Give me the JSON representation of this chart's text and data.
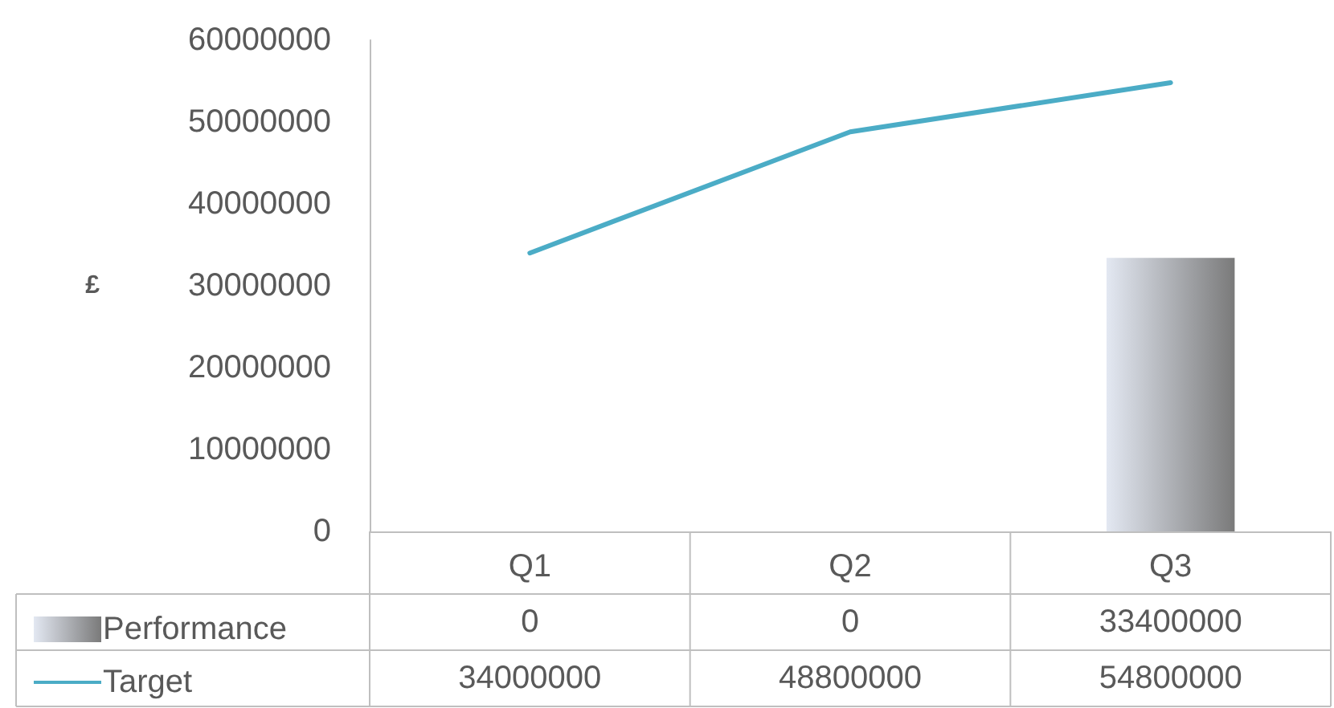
{
  "chart_data": {
    "type": "bar",
    "ylabel": "£",
    "categories": [
      "Q1",
      "Q2",
      "Q3"
    ],
    "series": [
      {
        "name": "Performance",
        "color": "#7a7a7a",
        "values": [
          0,
          0,
          33400000
        ]
      },
      {
        "name": "Target",
        "type": "line",
        "color": "#4bacc6",
        "marker": "none",
        "line_style": "solid",
        "values": [
          34000000,
          48800000,
          54800000
        ]
      }
    ],
    "ylim": [
      0,
      60000000
    ],
    "yticks": [
      0,
      10000000,
      20000000,
      30000000,
      40000000,
      50000000,
      60000000
    ],
    "grid": false,
    "legend": "bottom left",
    "data_labels": true
  }
}
